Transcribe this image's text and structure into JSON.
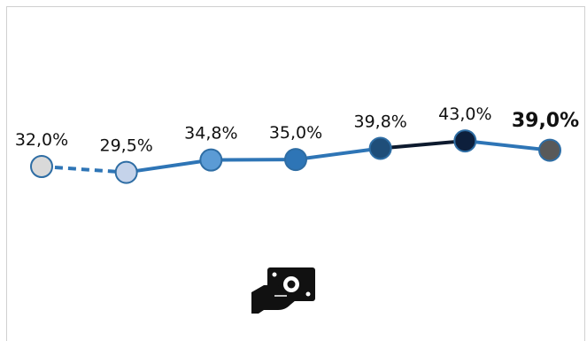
{
  "chart_data": {
    "type": "line",
    "categories": [
      "",
      "",
      "",
      "",
      "",
      "",
      ""
    ],
    "values": [
      32.0,
      29.5,
      34.8,
      35.0,
      39.8,
      43.0,
      39.0
    ],
    "labels": [
      "32,0%",
      "29,5%",
      "34,8%",
      "35,0%",
      "39,8%",
      "43,0%",
      "39,0%"
    ],
    "marker_colors": [
      "#d9d9d9",
      "#c5d3ea",
      "#5b9bd5",
      "#2e75b6",
      "#1f4e79",
      "#0d1f3c",
      "#595959"
    ],
    "segment_styles": [
      "dashed",
      "solid",
      "solid",
      "solid",
      "solid",
      "solid"
    ],
    "segment_colors": [
      "#2e75b6",
      "#2e75b6",
      "#2e75b6",
      "#2e75b6",
      "#0d1a2e",
      "#2e75b6"
    ],
    "emphasized_last_label": true,
    "ylim": [
      0,
      100
    ],
    "grid": false,
    "legend": "none",
    "title": "",
    "xlabel": "",
    "ylabel": ""
  },
  "icon": "hand-holding-banknote-icon",
  "colors": {
    "line": "#2e75b6",
    "marker_stroke": "#2e6da4"
  }
}
